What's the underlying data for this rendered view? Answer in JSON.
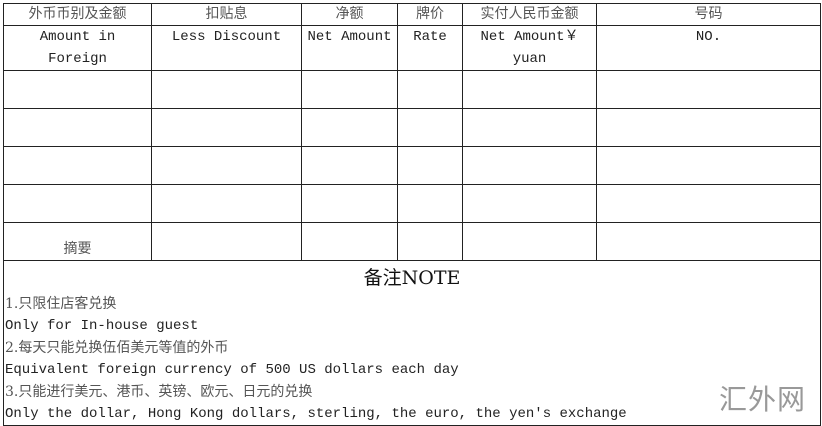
{
  "header_cn": [
    "外币币别及金额",
    "扣贴息",
    "净额",
    "牌价",
    "实付人民币金额",
    "号码"
  ],
  "header_en": [
    "Amount in Foreign",
    "Less Discount",
    "Net Amount",
    "Rate",
    "Net Amount￥ yuan",
    "NO."
  ],
  "summary_label": "摘要",
  "notes": {
    "title": "备注NOTE",
    "lines": [
      "1.只限住店客兑换",
      "Only for In-house guest",
      "2.每天只能兑换伍佰美元等值的外币",
      "Equivalent foreign currency of 500 US dollars each day",
      "3.只能进行美元、港币、英镑、欧元、日元的兑换",
      "Only the dollar, Hong Kong dollars, sterling, the euro, the yen's exchange"
    ]
  },
  "watermark": "汇外网"
}
